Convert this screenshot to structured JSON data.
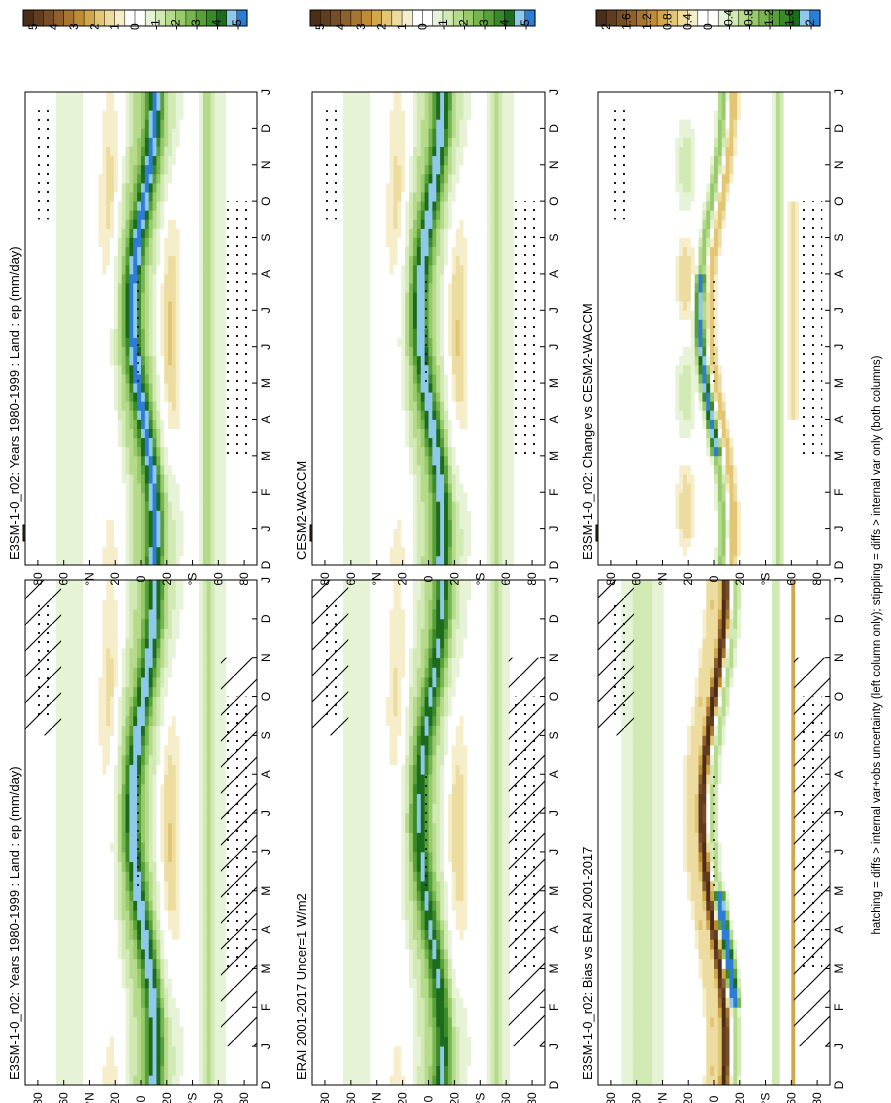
{
  "footnote": "hatching = diffs > internal var+obs uncertainty (left column only); stippling = diffs > internal var only (both columns)",
  "colors": {
    "field": [
      "#2e7dd4",
      "#8ec9ec",
      "#1d6b1d",
      "#3b8a2a",
      "#58a13a",
      "#77b64e",
      "#98c96a",
      "#b6da8c",
      "#d1e9b2",
      "#e6f3d6",
      "#ffffff",
      "#ffffff",
      "#f6eeca",
      "#ecdca0",
      "#e2c673",
      "#d2a74b",
      "#bf8c35",
      "#a87431",
      "#8f5f2c",
      "#774d27",
      "#613d20",
      "#4b2e18"
    ],
    "diff": [
      "#2e7dd4",
      "#8ec9ec",
      "#1d6b1d",
      "#3b8a2a",
      "#58a13a",
      "#77b64e",
      "#98c96a",
      "#b6da8c",
      "#d1e9b2",
      "#e6f3d6",
      "#ffffff",
      "#ffffff",
      "#f6eeca",
      "#ecdca0",
      "#e2c673",
      "#d2a74b",
      "#bf8c35",
      "#a87431",
      "#8f5f2c",
      "#774d27",
      "#613d20",
      "#4b2e18"
    ]
  },
  "chart_data": [
    {
      "type": "heatmap",
      "panel": "row1-left",
      "title": "E3SM-1-0_r02: Years 1980-1999 : Land : ep (mm/day)",
      "time_ticks": [
        "D",
        "J",
        "F",
        "M",
        "A",
        "M",
        "J",
        "J",
        "A",
        "S",
        "O",
        "N",
        "D",
        "J"
      ],
      "lat_ticks": [
        "80",
        "60",
        "°N",
        "20",
        "0",
        "20",
        "°S",
        "60",
        "80"
      ],
      "lat_range": [
        -90,
        90
      ],
      "colorbar": {
        "labels": [
          "5",
          "4",
          "3",
          "2",
          "1",
          "0",
          "-1",
          "-2",
          "-3",
          "-4",
          "-5"
        ],
        "range": [
          -5.5,
          5.5
        ],
        "palette": "field"
      },
      "hatching": true,
      "stippling": true
    },
    {
      "type": "heatmap",
      "panel": "row1-right",
      "title": "E3SM-1-0_r02: Years 1980-1999 : Land : ep (mm/day)",
      "time_ticks": [
        "D",
        "J",
        "F",
        "M",
        "A",
        "M",
        "J",
        "J",
        "A",
        "S",
        "O",
        "N",
        "D",
        "J"
      ],
      "lat_ticks": [
        "80",
        "60",
        "°N",
        "20",
        "0",
        "20",
        "°S",
        "60",
        "80"
      ],
      "lat_range": [
        -90,
        90
      ],
      "colorbar": {
        "labels": [
          "5",
          "4",
          "3",
          "2",
          "1",
          "0",
          "-1",
          "-2",
          "-3",
          "-4",
          "-5"
        ],
        "range": [
          -5.5,
          5.5
        ],
        "palette": "field"
      },
      "hatching": false,
      "stippling": true
    },
    {
      "type": "heatmap",
      "panel": "row2-left",
      "title": "ERAI 2001-2017 Uncer=1 W/m2",
      "time_ticks": [
        "D",
        "J",
        "F",
        "M",
        "A",
        "M",
        "J",
        "J",
        "A",
        "S",
        "O",
        "N",
        "D",
        "J"
      ],
      "lat_ticks": [
        "80",
        "60",
        "°N",
        "20",
        "0",
        "20",
        "°S",
        "60",
        "80"
      ],
      "lat_range": [
        -90,
        90
      ],
      "colorbar": {
        "labels": [
          "5",
          "4",
          "3",
          "2",
          "1",
          "0",
          "-1",
          "-2",
          "-3",
          "-4",
          "-5"
        ],
        "range": [
          -5.5,
          5.5
        ],
        "palette": "field"
      },
      "hatching": true,
      "stippling": true
    },
    {
      "type": "heatmap",
      "panel": "row2-right",
      "title": "CESM2-WACCM",
      "time_ticks": [
        "D",
        "J",
        "F",
        "M",
        "A",
        "M",
        "J",
        "J",
        "A",
        "S",
        "O",
        "N",
        "D",
        "J"
      ],
      "lat_ticks": [
        "80",
        "60",
        "°N",
        "20",
        "0",
        "20",
        "°S",
        "60",
        "80"
      ],
      "lat_range": [
        -90,
        90
      ],
      "colorbar": {
        "labels": [
          "5",
          "4",
          "3",
          "2",
          "1",
          "0",
          "-1",
          "-2",
          "-3",
          "-4",
          "-5"
        ],
        "range": [
          -5.5,
          5.5
        ],
        "palette": "field"
      },
      "hatching": false,
      "stippling": true
    },
    {
      "type": "heatmap",
      "panel": "row3-left",
      "title": "E3SM-1-0_r02: Bias vs ERAI 2001-2017",
      "time_ticks": [
        "D",
        "J",
        "F",
        "M",
        "A",
        "M",
        "J",
        "J",
        "A",
        "S",
        "O",
        "N",
        "D",
        "J"
      ],
      "lat_ticks": [
        "80",
        "60",
        "°N",
        "20",
        "0",
        "20",
        "°S",
        "60",
        "80"
      ],
      "lat_range": [
        -90,
        90
      ],
      "colorbar": {
        "labels": [
          "2",
          "1.6",
          "1.2",
          "0.8",
          "0.4",
          "0",
          "-0.4",
          "-0.8",
          "-1.2",
          "-1.6",
          "-2"
        ],
        "range": [
          -2.2,
          2.2
        ],
        "palette": "diff"
      },
      "hatching": true,
      "stippling": true
    },
    {
      "type": "heatmap",
      "panel": "row3-right",
      "title": "E3SM-1-0_r02: Change vs CESM2-WACCM",
      "time_ticks": [
        "D",
        "J",
        "F",
        "M",
        "A",
        "M",
        "J",
        "J",
        "A",
        "S",
        "O",
        "N",
        "D",
        "J"
      ],
      "lat_ticks": [
        "80",
        "60",
        "°N",
        "20",
        "0",
        "20",
        "°S",
        "60",
        "80"
      ],
      "lat_range": [
        -90,
        90
      ],
      "colorbar": {
        "labels": [
          "2",
          "1.6",
          "1.2",
          "0.8",
          "0.4",
          "0",
          "-0.4",
          "-0.8",
          "-1.2",
          "-1.6",
          "-2"
        ],
        "range": [
          -2.2,
          2.2
        ],
        "palette": "diff"
      },
      "hatching": false,
      "stippling": true
    }
  ]
}
